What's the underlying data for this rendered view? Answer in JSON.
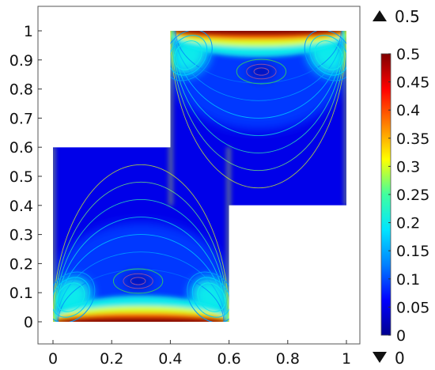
{
  "chart_data": {
    "type": "heatmap",
    "title": "",
    "xlabel": "",
    "ylabel": "",
    "xlim": [
      -0.05,
      1.02
    ],
    "ylim": [
      -0.08,
      1.1
    ],
    "x_ticks": [
      "0",
      "0.2",
      "0.4",
      "0.6",
      "0.8",
      "1"
    ],
    "x_tick_values": [
      0,
      0.2,
      0.4,
      0.6,
      0.8,
      1
    ],
    "y_ticks": [
      "0",
      "0.1",
      "0.2",
      "0.3",
      "0.4",
      "0.5",
      "0.6",
      "0.7",
      "0.8",
      "0.9",
      "1"
    ],
    "y_tick_values": [
      0,
      0.1,
      0.2,
      0.3,
      0.4,
      0.5,
      0.6,
      0.7,
      0.8,
      0.9,
      1
    ],
    "grid": false,
    "domain": {
      "lower_block": {
        "x": [
          0,
          0.6
        ],
        "y": [
          0,
          0.6
        ]
      },
      "upper_block": {
        "x": [
          0.4,
          1.0
        ],
        "y": [
          0.4,
          1.0
        ]
      }
    },
    "colorbar": {
      "min": 0,
      "max": 0.5,
      "ticks": [
        "0",
        "0.05",
        "0.1",
        "0.15",
        "0.2",
        "0.25",
        "0.3",
        "0.35",
        "0.4",
        "0.45",
        "0.5"
      ],
      "tick_values": [
        0,
        0.05,
        0.1,
        0.15,
        0.2,
        0.25,
        0.3,
        0.35,
        0.4,
        0.45,
        0.5
      ],
      "colormap": [
        "#00008f",
        "#0000ff",
        "#0080ff",
        "#00e5ff",
        "#40ff9f",
        "#ffff00",
        "#ff8000",
        "#ff0000",
        "#800000"
      ],
      "range_max_label": "0.5",
      "range_min_label": "0"
    },
    "features": {
      "peak_value_edges": 0.5,
      "lobe_value": 0.2,
      "vortex_center_lower": {
        "x": 0.29,
        "y": 0.14
      },
      "vortex_center_upper": {
        "x": 0.71,
        "y": 0.86
      }
    },
    "contour_levels": [
      0.04,
      0.07,
      0.1,
      0.13,
      0.16,
      0.19
    ]
  }
}
